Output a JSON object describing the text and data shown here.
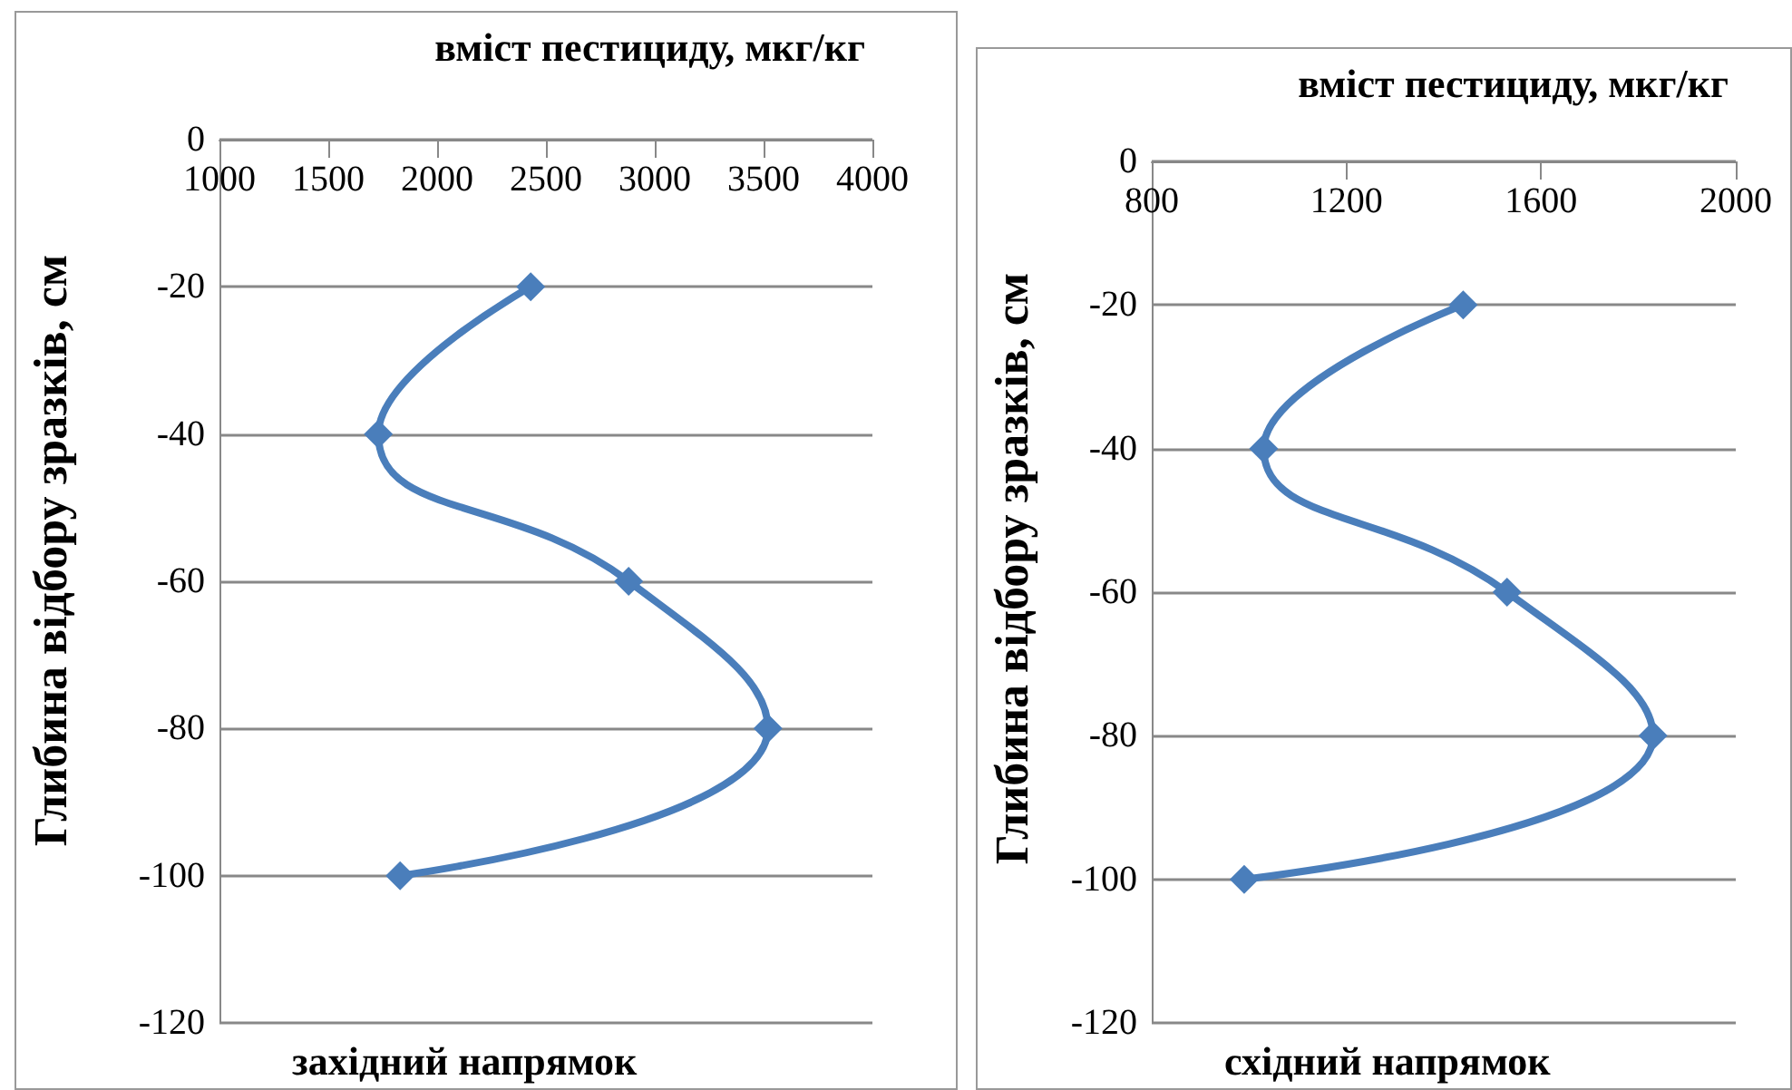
{
  "chart_data": [
    {
      "type": "line",
      "title": "західний напрямок",
      "xlabel": "вміст пестициду, мкг/кг",
      "ylabel": "Глибина відбору зразків, см",
      "xlim": [
        1000,
        4000
      ],
      "xticks": [
        1000,
        1500,
        2000,
        2500,
        3000,
        3500,
        4000
      ],
      "ylim": [
        -120,
        0
      ],
      "yticks": [
        -120,
        -100,
        -80,
        -60,
        -40,
        -20,
        0
      ],
      "grid": "y",
      "marker": "diamond",
      "line_style": "solid",
      "series": [
        {
          "color": "#4a7ebb",
          "x": [
            2430,
            1730,
            2880,
            3520,
            1830
          ],
          "values": [
            -20,
            -40,
            -60,
            -80,
            -100
          ]
        }
      ]
    },
    {
      "type": "line",
      "title": "східний напрямок",
      "xlabel": "вміст пестициду, мкг/кг",
      "ylabel": "Глибина відбору зразків, см",
      "xlim": [
        800,
        2000
      ],
      "xticks": [
        800,
        1200,
        1600,
        2000
      ],
      "ylim": [
        -120,
        0
      ],
      "yticks": [
        -120,
        -100,
        -80,
        -60,
        -40,
        -20,
        0
      ],
      "grid": "y",
      "marker": "diamond",
      "line_style": "solid",
      "series": [
        {
          "color": "#4a7ebb",
          "x": [
            1440,
            1030,
            1530,
            1830,
            990
          ],
          "values": [
            -20,
            -40,
            -60,
            -80,
            -100
          ]
        }
      ]
    }
  ]
}
